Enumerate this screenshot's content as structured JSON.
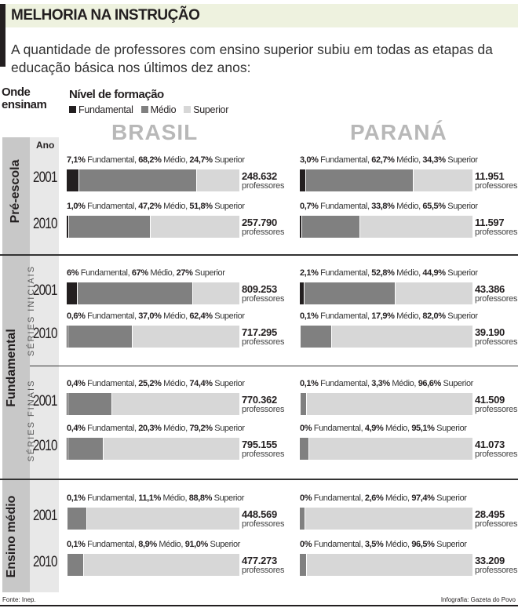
{
  "header": {
    "title": "MELHORIA NA INSTRUÇÃO",
    "subtitle": "A quantidade de professores com ensino superior subiu em todas as etapas da educação básica nos últimos dez anos:"
  },
  "chart_data": {
    "type": "bar",
    "stacked": true,
    "orientation": "horizontal",
    "row_header": "Onde ensinam",
    "legend_title": "Nível de formação",
    "legend": [
      {
        "name": "Fundamental",
        "color": "#231f20"
      },
      {
        "name": "Médio",
        "color": "#808080"
      },
      {
        "name": "Superior",
        "color": "#d7d7d7"
      }
    ],
    "year_header": "Ano",
    "unit": "professores",
    "regions": [
      "BRASIL",
      "PARANÁ"
    ],
    "sections": [
      {
        "name": "Pré-escola",
        "sub": "",
        "rows": [
          {
            "year": "2001",
            "brasil": {
              "values": [
                7.1,
                68.2,
                24.7
              ],
              "labels": [
                "7,1%",
                "68,2%",
                "24,7%"
              ],
              "total": "248.632"
            },
            "parana": {
              "values": [
                3.0,
                62.7,
                34.3
              ],
              "labels": [
                "3,0%",
                "62,7%",
                "34,3%"
              ],
              "total": "11.951"
            }
          },
          {
            "year": "2010",
            "brasil": {
              "values": [
                1.0,
                47.2,
                51.8
              ],
              "labels": [
                "1,0%",
                "47,2%",
                "51,8%"
              ],
              "total": "257.790"
            },
            "parana": {
              "values": [
                0.7,
                33.8,
                65.5
              ],
              "labels": [
                "0,7%",
                "33,8%",
                "65,5%"
              ],
              "total": "11.597"
            }
          }
        ]
      },
      {
        "name": "Fundamental",
        "sub": "SÉRIES INICIAIS",
        "rows": [
          {
            "year": "2001",
            "brasil": {
              "values": [
                6,
                67,
                27
              ],
              "labels": [
                "6%",
                "67%",
                "27%"
              ],
              "total": "809.253"
            },
            "parana": {
              "values": [
                2.1,
                52.8,
                44.9
              ],
              "labels": [
                "2,1%",
                "52,8%",
                "44,9%"
              ],
              "total": "43.386"
            }
          },
          {
            "year": "2010",
            "brasil": {
              "values": [
                0.6,
                37.0,
                62.4
              ],
              "labels": [
                "0,6%",
                "37,0%",
                "62,4%"
              ],
              "total": "717.295"
            },
            "parana": {
              "values": [
                0.1,
                17.9,
                82.0
              ],
              "labels": [
                "0,1%",
                "17,9%",
                "82,0%"
              ],
              "total": "39.190"
            }
          }
        ]
      },
      {
        "name": "Fundamental",
        "sub": "SÉRIES FINAIS",
        "rows": [
          {
            "year": "2001",
            "brasil": {
              "values": [
                0.4,
                25.2,
                74.4
              ],
              "labels": [
                "0,4%",
                "25,2%",
                "74,4%"
              ],
              "total": "770.362"
            },
            "parana": {
              "values": [
                0.1,
                3.3,
                96.6
              ],
              "labels": [
                "0,1%",
                "3,3%",
                "96,6%"
              ],
              "total": "41.509"
            }
          },
          {
            "year": "2010",
            "brasil": {
              "values": [
                0.4,
                20.3,
                79.2
              ],
              "labels": [
                "0,4%",
                "20,3%",
                "79,2%"
              ],
              "total": "795.155"
            },
            "parana": {
              "values": [
                0,
                4.9,
                95.1
              ],
              "labels": [
                "0%",
                "4,9%",
                "95,1%"
              ],
              "total": "41.073"
            }
          }
        ]
      },
      {
        "name": "Ensino médio",
        "sub": "",
        "rows": [
          {
            "year": "2001",
            "brasil": {
              "values": [
                0.1,
                11.1,
                88.8
              ],
              "labels": [
                "0,1%",
                "11,1%",
                "88,8%"
              ],
              "total": "448.569"
            },
            "parana": {
              "values": [
                0,
                2.6,
                97.4
              ],
              "labels": [
                "0%",
                "2,6%",
                "97,4%"
              ],
              "total": "28.495"
            }
          },
          {
            "year": "2010",
            "brasil": {
              "values": [
                0.1,
                8.9,
                91.0
              ],
              "labels": [
                "0,1%",
                "8,9%",
                "91,0%"
              ],
              "total": "477.273"
            },
            "parana": {
              "values": [
                0,
                3.5,
                96.5
              ],
              "labels": [
                "0%",
                "3,5%",
                "96,5%"
              ],
              "total": "33.209"
            }
          }
        ]
      }
    ]
  },
  "section_main_labels": {
    "pre": "Pré-escola",
    "fund": "Fundamental",
    "medio": "Ensino médio"
  },
  "footer": {
    "source": "Fonte: Inep.",
    "credit": "Infografia: Gazeta do Povo"
  }
}
